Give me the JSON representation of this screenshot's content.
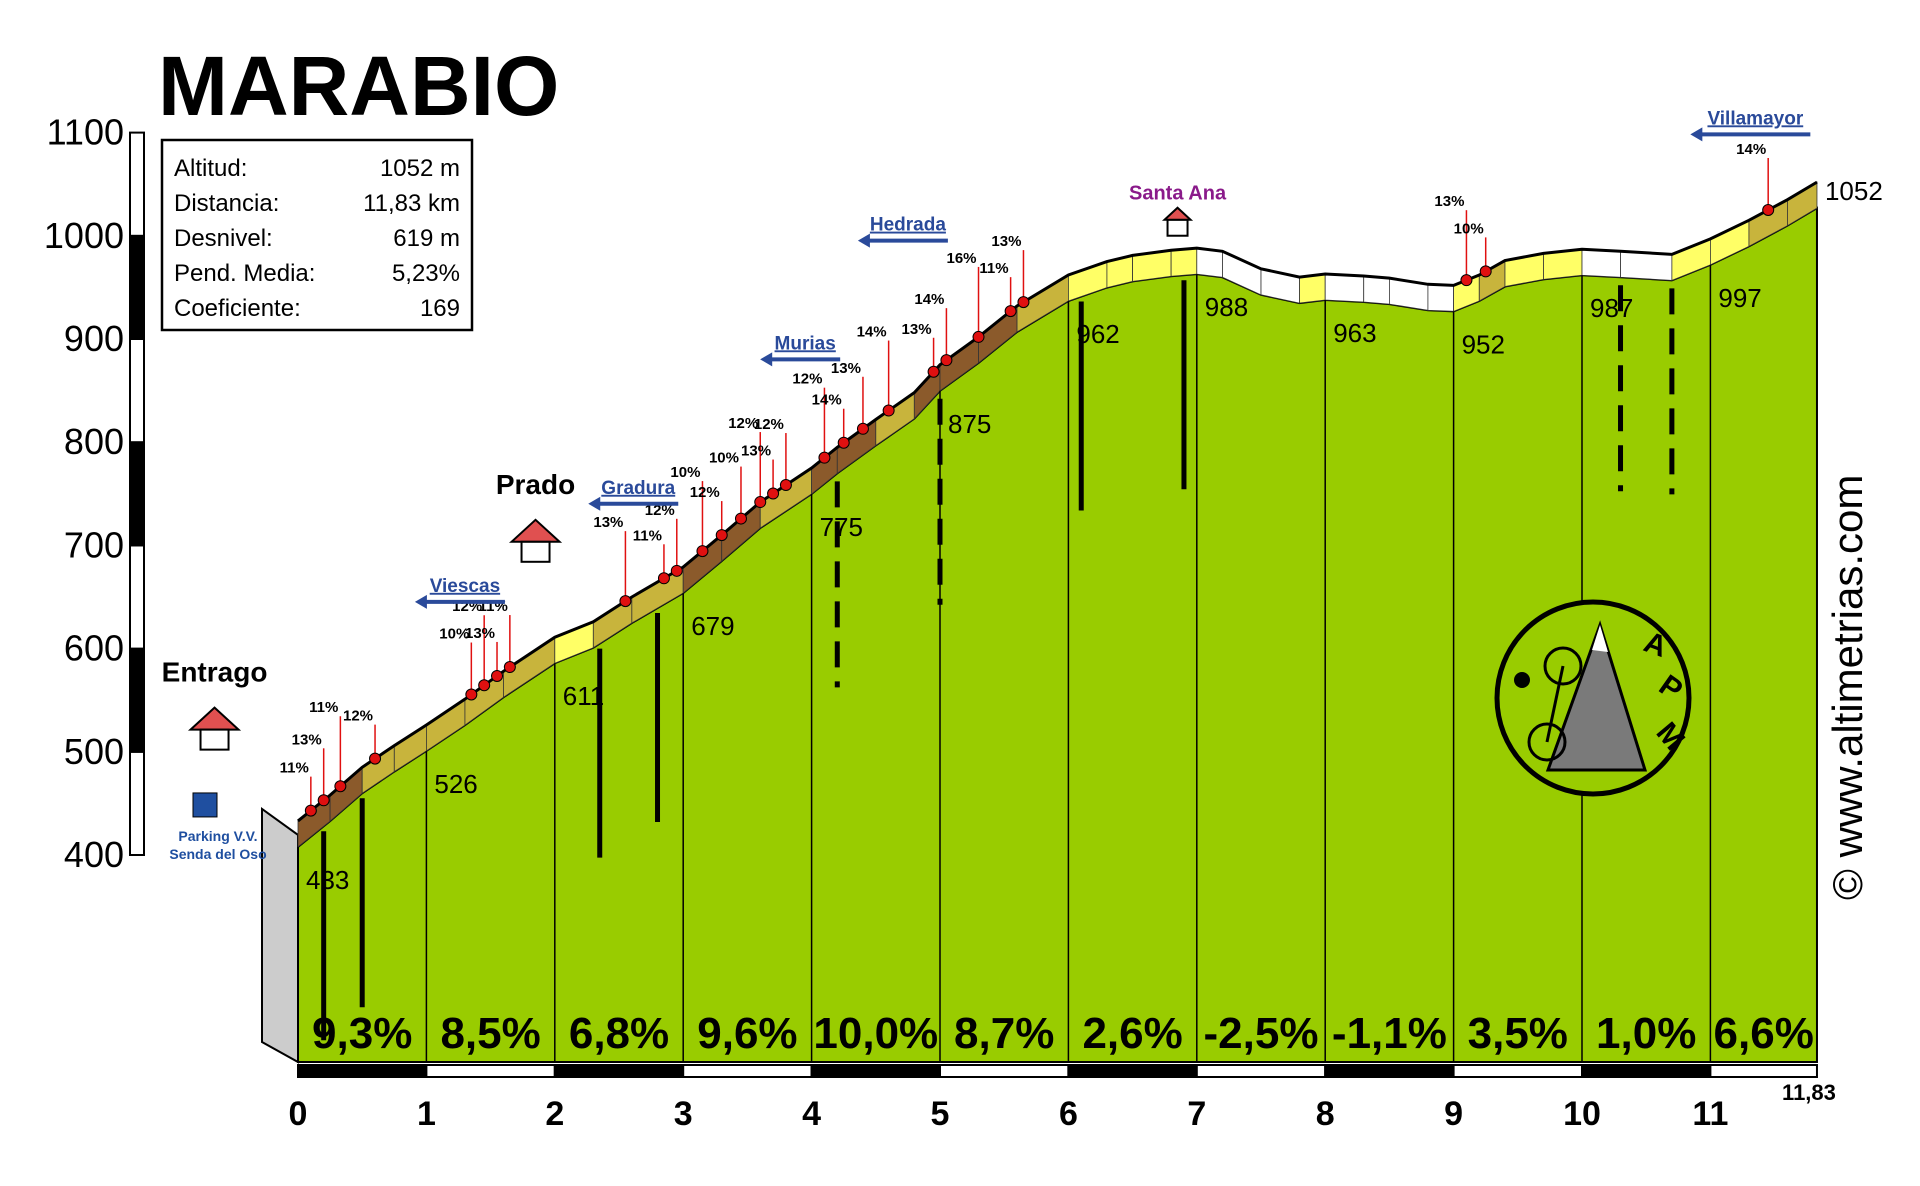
{
  "title": "MARABIO",
  "info_box": {
    "rows": [
      {
        "label": "Altitud:",
        "value": "1052 m"
      },
      {
        "label": "Distancia:",
        "value": "11,83 km"
      },
      {
        "label": "Desnivel:",
        "value": "619 m"
      },
      {
        "label": "Pend. Media:",
        "value": "5,23%"
      },
      {
        "label": "Coeficiente:",
        "value": "169"
      }
    ]
  },
  "copyright": "© www.altimetrias.com",
  "logo_letters": [
    "A",
    "P",
    "M"
  ],
  "colors": {
    "profile_fill": "#99cc00",
    "band_light": "#ffff66",
    "band_mid": "#c8b43c",
    "band_steep": "#8b5a2b",
    "marker": "#e01010",
    "house_roof": "#e05050",
    "direction_arrow": "#2a4a9a",
    "brown_arrow": "#8b4a2b",
    "church_label": "#8a1a8a"
  },
  "chart_data": {
    "type": "area",
    "title": "MARABIO",
    "xlabel": "",
    "ylabel": "",
    "xlim": [
      0,
      11.83
    ],
    "ylim": [
      400,
      1100
    ],
    "y_ticks": [
      "400",
      "500",
      "600",
      "700",
      "800",
      "900",
      "1000",
      "1100"
    ],
    "x_ticks": [
      "0",
      "1",
      "2",
      "3",
      "4",
      "5",
      "6",
      "7",
      "8",
      "9",
      "10",
      "11"
    ],
    "x_end_label": "11,83",
    "start_altitude_label": "433",
    "end_altitude_label": "1052",
    "profile": {
      "x": [
        0,
        0.25,
        0.5,
        0.75,
        1,
        1.3,
        1.6,
        2,
        2.3,
        2.6,
        3,
        3.3,
        3.6,
        4,
        4.2,
        4.5,
        4.8,
        5,
        5.3,
        5.6,
        6,
        6.3,
        6.5,
        6.8,
        7,
        7.2,
        7.5,
        7.8,
        8,
        8.3,
        8.5,
        8.8,
        9,
        9.2,
        9.4,
        9.7,
        10,
        10.3,
        10.7,
        11,
        11.3,
        11.6,
        11.83
      ],
      "y": [
        433,
        458,
        485,
        506,
        526,
        551,
        578,
        611,
        626,
        650,
        679,
        710,
        742,
        775,
        795,
        822,
        848,
        875,
        902,
        932,
        962,
        975,
        981,
        986,
        988,
        985,
        968,
        960,
        963,
        961,
        959,
        953,
        952,
        962,
        976,
        983,
        987,
        985,
        982,
        997,
        1015,
        1035,
        1052
      ]
    },
    "km_altitudes": [
      {
        "x": 0,
        "label": "433"
      },
      {
        "x": 1,
        "label": "526"
      },
      {
        "x": 2,
        "label": "611"
      },
      {
        "x": 3,
        "label": "679"
      },
      {
        "x": 4,
        "label": "775"
      },
      {
        "x": 5,
        "label": "875"
      },
      {
        "x": 6,
        "label": "962"
      },
      {
        "x": 7,
        "label": "988"
      },
      {
        "x": 8,
        "label": "963"
      },
      {
        "x": 9,
        "label": "952"
      },
      {
        "x": 10,
        "label": "987"
      },
      {
        "x": 11,
        "label": "997"
      }
    ],
    "segment_gradients": [
      "9,3%",
      "8,5%",
      "6,8%",
      "9,6%",
      "10,0%",
      "8,7%",
      "2,6%",
      "-2,5%",
      "-1,1%",
      "3,5%",
      "1,0%",
      "6,6%"
    ],
    "steep_points": [
      {
        "x": 0.1,
        "label": "11%"
      },
      {
        "x": 0.2,
        "label": "13%"
      },
      {
        "x": 0.33,
        "label": "11%"
      },
      {
        "x": 0.6,
        "label": "12%"
      },
      {
        "x": 1.35,
        "label": "10%"
      },
      {
        "x": 1.45,
        "label": "12%"
      },
      {
        "x": 1.55,
        "label": "13%"
      },
      {
        "x": 1.65,
        "label": "11%"
      },
      {
        "x": 2.55,
        "label": "13%"
      },
      {
        "x": 2.85,
        "label": "11%"
      },
      {
        "x": 2.95,
        "label": "12%"
      },
      {
        "x": 3.15,
        "label": "10%"
      },
      {
        "x": 3.3,
        "label": "12%"
      },
      {
        "x": 3.45,
        "label": "10%"
      },
      {
        "x": 3.6,
        "label": "12%"
      },
      {
        "x": 3.7,
        "label": "13%"
      },
      {
        "x": 3.8,
        "label": "12%"
      },
      {
        "x": 4.1,
        "label": "12%"
      },
      {
        "x": 4.25,
        "label": "14%"
      },
      {
        "x": 4.4,
        "label": "13%"
      },
      {
        "x": 4.6,
        "label": "14%"
      },
      {
        "x": 4.95,
        "label": "13%"
      },
      {
        "x": 5.05,
        "label": "14%"
      },
      {
        "x": 5.3,
        "label": "16%"
      },
      {
        "x": 5.55,
        "label": "11%"
      },
      {
        "x": 5.65,
        "label": "13%"
      },
      {
        "x": 9.1,
        "label": "13%"
      },
      {
        "x": 9.25,
        "label": "10%"
      },
      {
        "x": 11.45,
        "label": "14%"
      }
    ],
    "places": [
      {
        "name": "Entrago",
        "x": -0.65,
        "y": 568
      },
      {
        "name": "Prado",
        "x": 1.85,
        "y": 750
      }
    ],
    "direction_signs": [
      {
        "label": "Viescas",
        "x": 1.3,
        "y": 655
      },
      {
        "label": "Gradura",
        "x": 2.65,
        "y": 750
      },
      {
        "label": "Murias",
        "x": 3.95,
        "y": 890
      },
      {
        "label": "Hedrada",
        "x": 4.75,
        "y": 1005
      },
      {
        "label": "Villamayor",
        "x": 11.35,
        "y": 1108
      }
    ],
    "church": {
      "label": "Santa Ana",
      "x": 6.85
    },
    "parking": {
      "line1": "Parking V.V.",
      "line2": "Senda del Oso"
    }
  }
}
